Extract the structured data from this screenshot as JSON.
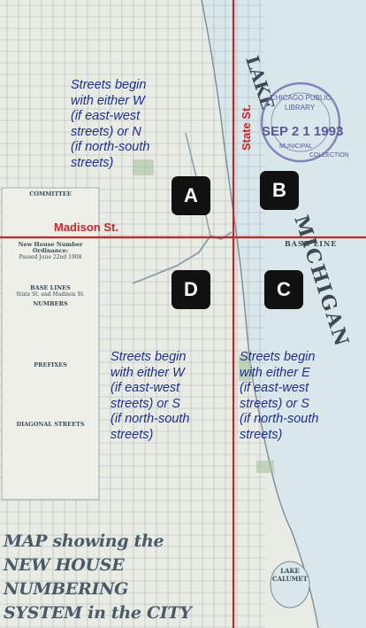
{
  "quadrant_labels": {
    "a": "A",
    "b": "B",
    "c": "C",
    "d": "D"
  },
  "baselines": {
    "horizontal_label": "Madison St.",
    "vertical_label": "State St."
  },
  "annotations": {
    "nw": "Streets begin\nwith either W\n(if east-west\nstreets) or N\n(if north-south\nstreets)",
    "sw": "Streets begin\nwith either W\n(if east-west\nstreets) or S\n(if north-south\nstreets)",
    "se": "Streets begin\nwith either E\n(if east-west\nstreets) or S\n(if north-south\nstreets)"
  },
  "map_title": "MAP showing the NEW HOUSE NUMBERING SYSTEM in the CITY of CHICAGO",
  "stamp": {
    "line1": "CHICAGO PUBLIC",
    "line2": "LIBRARY",
    "date": "SEP 2 1 1993",
    "line3": "MUNICIPAL",
    "line4": "COLLECTION"
  },
  "map_labels": {
    "lake_upper": "LAKE",
    "lake_lower": "MICHIGAN",
    "base_line": "BASE LINE",
    "lake_calumet": "LAKE CALUMET"
  },
  "legend": {
    "committee": "COMMITTEE",
    "ordinance_heading": "New House Number Ordinance:",
    "passed": "Passed June 22nd 1908",
    "base_lines_heading": "BASE LINES",
    "base_lines": "State St. and Madison St.",
    "numbers_heading": "NUMBERS",
    "prefixes_heading": "PREFIXES",
    "diagonal_heading": "DIAGONAL STREETS"
  },
  "colors": {
    "baseline_red": "#c8242a",
    "annotation_blue": "#1f2f8f",
    "lake": "#d9e7ea",
    "grid": "#8a9aa5"
  }
}
